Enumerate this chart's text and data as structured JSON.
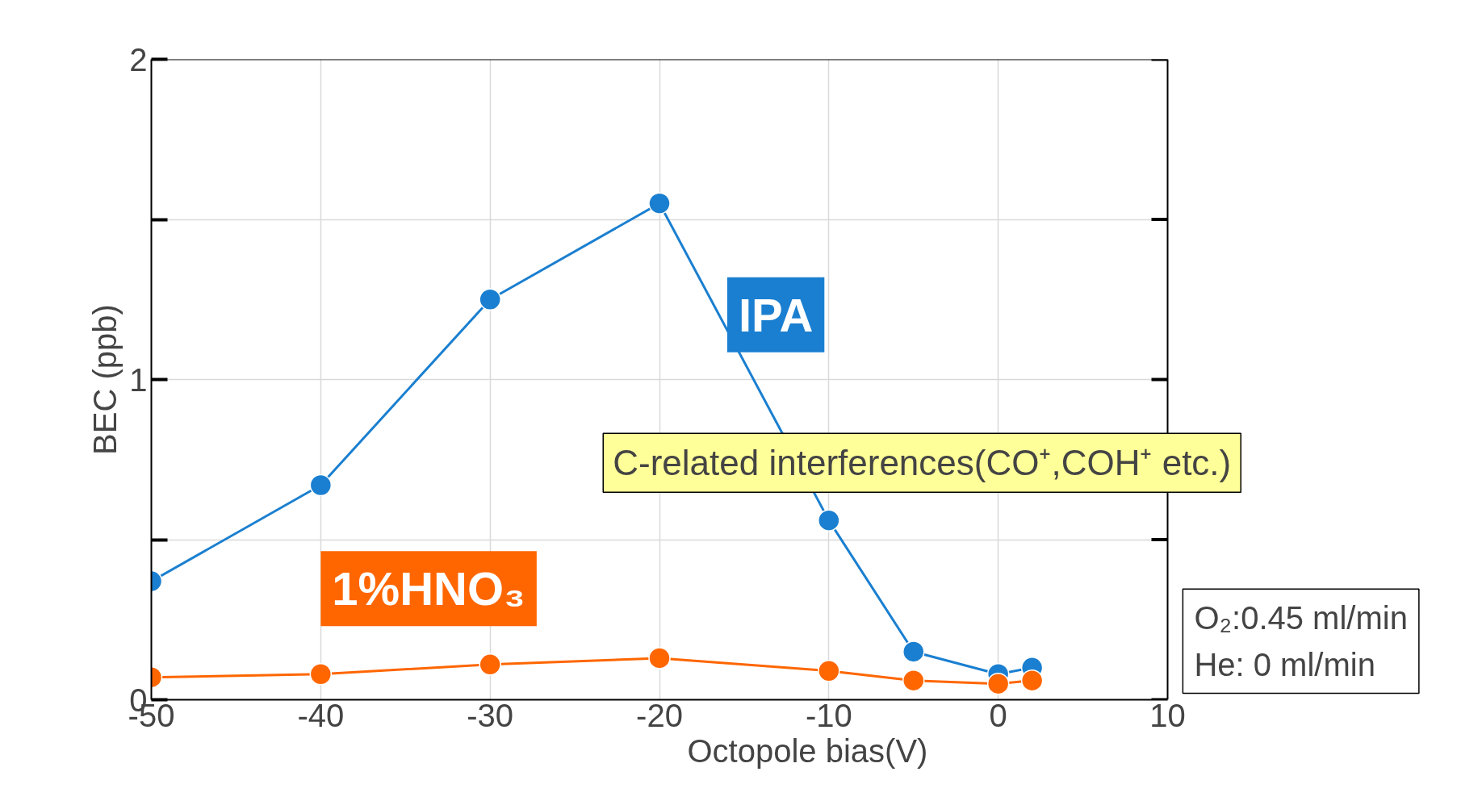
{
  "chart_data": {
    "type": "line",
    "xlabel": "Octopole  bias(V)",
    "ylabel": "BEC (ppb)",
    "x": [
      -50,
      -40,
      -30,
      -20,
      -10,
      -5,
      0,
      2
    ],
    "series": [
      {
        "name": "IPA",
        "color": "#1a7fd0",
        "values": [
          0.37,
          0.67,
          1.25,
          1.55,
          0.56,
          0.15,
          0.08,
          0.1
        ]
      },
      {
        "name": "1%HNO₃",
        "color": "#ff6600",
        "values": [
          0.07,
          0.08,
          0.11,
          0.13,
          0.09,
          0.06,
          0.05,
          0.06
        ]
      }
    ],
    "xlim": [
      -50,
      10
    ],
    "xticks": [
      -50,
      -40,
      -30,
      -20,
      -10,
      0,
      10
    ],
    "ylim": [
      0,
      2
    ],
    "yticks": [
      0,
      {
        "value": 0.5,
        "label": null
      },
      1,
      {
        "value": 1.5,
        "label": null
      },
      2
    ],
    "grid": true,
    "marker": "circle",
    "line_style": "solid",
    "annotations": [
      "C-related interferences(CO⁺,COH⁺ etc.)",
      "O₂:0.45 ml/min",
      "He: 0 ml/min"
    ]
  }
}
